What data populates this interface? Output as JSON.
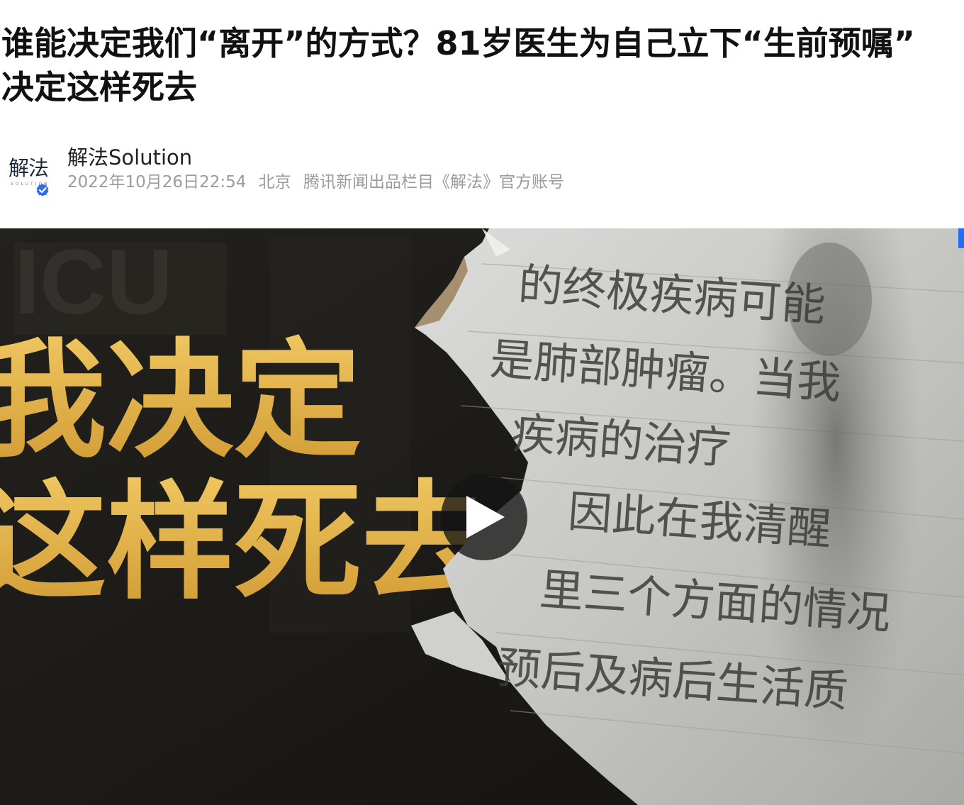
{
  "article": {
    "title": "谁能决定我们“离开”的方式？81岁医生为自己立下“生前预嘱” 决定这样死去"
  },
  "author": {
    "avatar_logo_text": "解法",
    "avatar_sub_text": "SOLUTION",
    "name": "解法Solution",
    "datetime": "2022年10月26日22:54",
    "location": "北京",
    "description": "腾讯新闻出品栏目《解法》官方账号"
  },
  "video": {
    "cover_bg_text": "ICU",
    "cover_line_1": "我决定",
    "cover_line_2": "这样死去",
    "note_lines": [
      "的终极疾病可能",
      "是肺部肿瘤。当我",
      "疾病的治疗",
      "因此在我清醒",
      "里三个方面的情况",
      "预后及病后生活质"
    ]
  },
  "colors": {
    "title": "#111111",
    "meta": "#9b9b9b",
    "cover_gold": "#e3b24a",
    "verified": "#2f6fe6"
  }
}
